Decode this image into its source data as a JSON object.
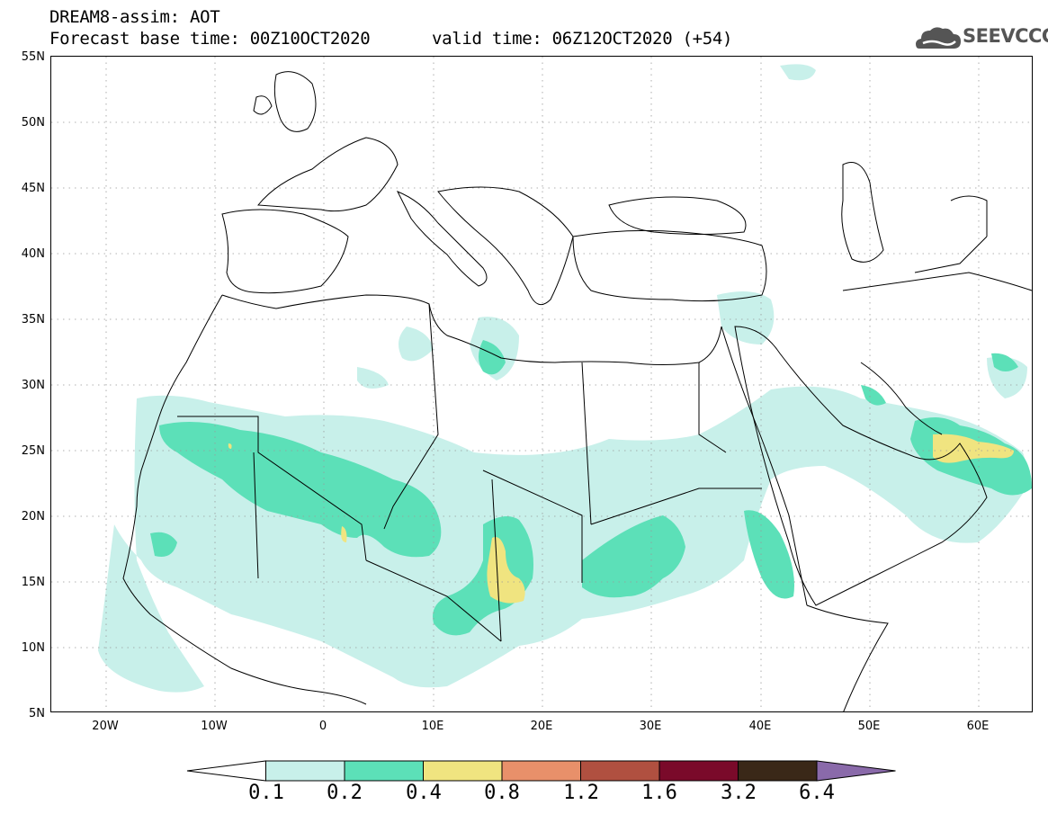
{
  "header": {
    "line1": "DREAM8-assim: AOT",
    "base_time": "Forecast base time: 00Z10OCT2020",
    "valid_time": "valid time: 06Z12OCT2020 (+54)"
  },
  "logo": {
    "text": "SEEVCCC",
    "icon": "cloud-icon"
  },
  "map": {
    "extent": {
      "lon": [
        -25,
        65
      ],
      "lat": [
        5,
        55
      ]
    },
    "lat_labels": [
      "5N",
      "10N",
      "15N",
      "20N",
      "25N",
      "30N",
      "35N",
      "40N",
      "45N",
      "50N",
      "55N"
    ],
    "lon_labels": [
      "20W",
      "10W",
      "0",
      "10E",
      "20E",
      "30E",
      "40E",
      "50E",
      "60E"
    ],
    "graticule": "dotted"
  },
  "colorbar": {
    "levels": [
      "0.1",
      "0.2",
      "0.4",
      "0.8",
      "1.2",
      "1.6",
      "3.2",
      "6.4"
    ],
    "colors": [
      "#ffffff",
      "#c8f0ea",
      "#5ce0b8",
      "#f0e480",
      "#e8906a",
      "#b05040",
      "#7a0a2a",
      "#3a2818",
      "#8a6aaa"
    ],
    "extend": "both"
  }
}
